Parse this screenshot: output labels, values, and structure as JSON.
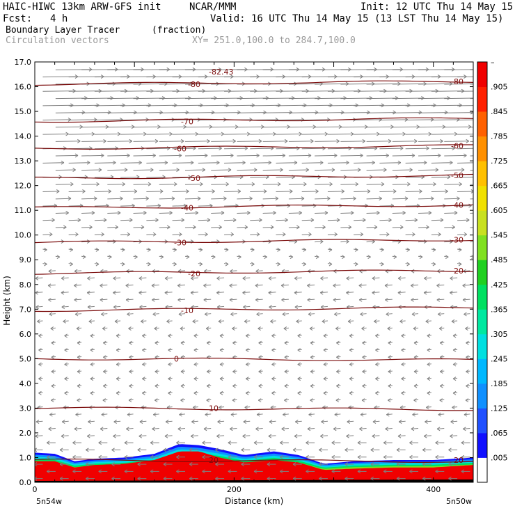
{
  "header": {
    "model_line": "HAIC-HIWC 13km ARW-GFS init",
    "org": "NCAR/MMM",
    "init_line": "Init: 12 UTC Thu 14 May 15",
    "fcst_label": "Fcst:",
    "fcst_value": "4 h",
    "valid_line": "Valid: 16 UTC Thu 14 May 15 (13 LST Thu 14 May 15)",
    "field_name": "Boundary Layer Tracer",
    "field_units": "(fraction)",
    "vector_name": "Circulation vectors",
    "xy_range": "XY= 251.0,100.0 to 284.7,100.0"
  },
  "chart_data": {
    "type": "heatmap",
    "xlabel": "Distance (km)",
    "ylabel": "Height (km)",
    "xlim": [
      0,
      440
    ],
    "ylim": [
      0,
      17
    ],
    "x_ticks": [
      0,
      200,
      400
    ],
    "y_ticks": [
      "0.0",
      "1.0",
      "2.0",
      "3.0",
      "4.0",
      "5.0",
      "6.0",
      "7.0",
      "8.0",
      "9.0",
      "10.0",
      "11.0",
      "12.0",
      "13.0",
      "14.0",
      "15.0",
      "16.0",
      "17.0"
    ],
    "x_endpoints": [
      "5n54w",
      "5n50w"
    ],
    "colorbar": {
      "labels": [
        ".005",
        ".065",
        ".125",
        ".185",
        ".245",
        ".305",
        ".365",
        ".425",
        ".485",
        ".545",
        ".605",
        ".665",
        ".725",
        ".785",
        ".845",
        ".905"
      ],
      "top_label": "–",
      "colors": [
        "#ffffff",
        "#1010ff",
        "#2050ff",
        "#1090ff",
        "#00b8ff",
        "#00dfe0",
        "#00e8a0",
        "#00e060",
        "#20d020",
        "#80e020",
        "#c8e020",
        "#f0e000",
        "#ffc000",
        "#ff9000",
        "#ff6000",
        "#ff2000",
        "#f00000"
      ]
    },
    "temperature_contours": [
      {
        "label": "0",
        "height_km": 5.0
      },
      {
        "label": "-10",
        "height_km": 6.95
      },
      {
        "label": "-20",
        "height_km": 8.45
      },
      {
        "label": "-30",
        "height_km": 9.7
      },
      {
        "label": "-40",
        "height_km": 11.1
      },
      {
        "label": "-50",
        "height_km": 12.3
      },
      {
        "label": "-60",
        "height_km": 13.5
      },
      {
        "label": "-70",
        "height_km": 14.6
      },
      {
        "label": "-80",
        "height_km": 16.1
      },
      {
        "label": "10",
        "height_km": 3.0
      },
      {
        "label": "20",
        "height_km": 0.9
      }
    ],
    "min_temperature_label": "-82.43",
    "tracer_top_km": [
      [
        0,
        1.2
      ],
      [
        20,
        1.15
      ],
      [
        40,
        0.85
      ],
      [
        60,
        0.95
      ],
      [
        90,
        1.0
      ],
      [
        120,
        1.15
      ],
      [
        145,
        1.55
      ],
      [
        165,
        1.5
      ],
      [
        185,
        1.35
      ],
      [
        210,
        1.1
      ],
      [
        240,
        1.25
      ],
      [
        265,
        1.1
      ],
      [
        290,
        0.75
      ],
      [
        320,
        0.85
      ],
      [
        360,
        0.9
      ],
      [
        400,
        0.9
      ],
      [
        440,
        1.0
      ]
    ],
    "tracer_core_top_km": [
      [
        0,
        0.85
      ],
      [
        20,
        0.85
      ],
      [
        40,
        0.6
      ],
      [
        60,
        0.7
      ],
      [
        90,
        0.75
      ],
      [
        120,
        0.9
      ],
      [
        145,
        1.25
      ],
      [
        165,
        1.25
      ],
      [
        185,
        1.0
      ],
      [
        210,
        0.8
      ],
      [
        240,
        0.9
      ],
      [
        265,
        0.8
      ],
      [
        290,
        0.5
      ],
      [
        320,
        0.55
      ],
      [
        360,
        0.6
      ],
      [
        400,
        0.6
      ],
      [
        440,
        0.7
      ]
    ],
    "vectors": "eastward aloft above about 9 km, weak westward flow from about 1.5 to 9 km, westward in the boundary layer"
  }
}
